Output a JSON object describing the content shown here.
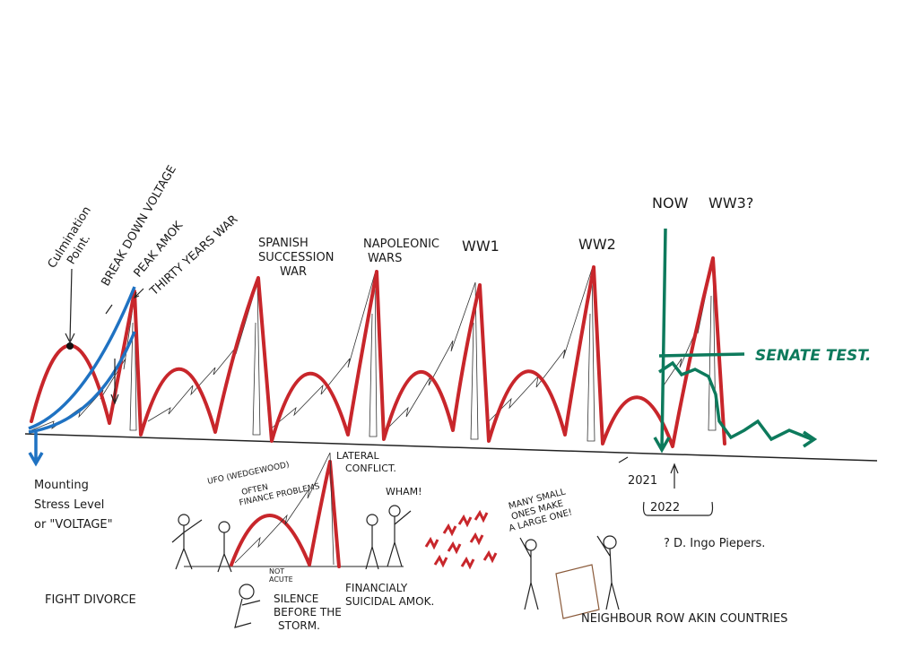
{
  "labels": {
    "culmination": [
      "Culmination",
      "Point."
    ],
    "breakdown": "BREAK DOWN VOLTAGE",
    "peak_amok": "PEAK AMOK",
    "thirty_years": "THIRTY YEARS WAR",
    "spanish": [
      "SPANISH",
      "SUCCESSION",
      "WAR"
    ],
    "napoleonic": [
      "NAPOLEONIC",
      "WARS"
    ],
    "ww1": "WW1",
    "ww2": "WW2",
    "now": "NOW",
    "ww3": "WW3?",
    "senate": "SENATE TEST.",
    "mounting": [
      "Mounting",
      "Stress Level",
      "or \"VOLTAGE\""
    ],
    "ufo": "UFO (WEDGEWOOD)",
    "finance": [
      "OFTEN",
      "FINANCE PROBLEMS"
    ],
    "lateral": [
      "LATERAL",
      "CONFLICT."
    ],
    "wham": "WHAM!",
    "many_small": [
      "MANY SMALL",
      "ONES MAKE",
      "A LARGE ONE!"
    ],
    "y2021": "2021",
    "y2022": "2022",
    "author": "? D. Ingo Piepers.",
    "fight": "FIGHT DIVORCE",
    "not_acute": [
      "NOT",
      "ACUTE"
    ],
    "silence": [
      "SILENCE",
      "BEFORE THE",
      "STORM."
    ],
    "suicidal": [
      "FINANCIALY",
      "SUICIDAL AMOK."
    ],
    "neighbour": "NEIGHBOUR ROW AKIN COUNTRIES"
  }
}
